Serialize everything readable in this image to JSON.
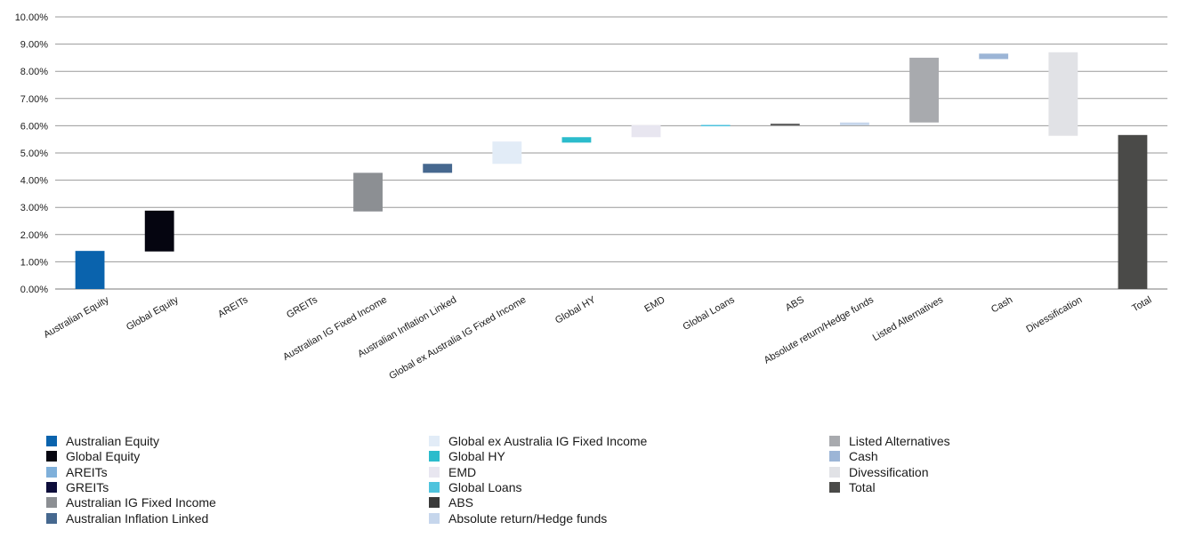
{
  "chart_data": {
    "type": "bar",
    "subtype": "waterfall",
    "title": "",
    "xlabel": "",
    "ylabel": "",
    "ylim": [
      0,
      10
    ],
    "y_tick_format": "percent_2dp",
    "y_ticks": [
      "0.00%",
      "1.00%",
      "2.00%",
      "3.00%",
      "4.00%",
      "5.00%",
      "6.00%",
      "7.00%",
      "8.00%",
      "9.00%",
      "10.00%"
    ],
    "grid": true,
    "legend_position": "bottom",
    "categories": [
      "Australian Equity",
      "Global Equity",
      "AREITs",
      "GREITs",
      "Australian IG Fixed Income",
      "Australian Inflation Linked",
      "Global ex Australia IG Fixed Income",
      "Global HY",
      "EMD",
      "Global Loans",
      "ABS",
      "Absolute return/Hedge funds",
      "Listed Alternatives",
      "Cash",
      "Divessification",
      "Total"
    ],
    "bars": [
      {
        "name": "Australian Equity",
        "base": 0.0,
        "top": 1.4,
        "color": "#0a63ad"
      },
      {
        "name": "Global Equity",
        "base": 1.38,
        "top": 2.88,
        "color": "#050510"
      },
      {
        "name": "AREITs",
        "base": 2.88,
        "top": 2.88,
        "color": "#7fb0da"
      },
      {
        "name": "GREITs",
        "base": 2.88,
        "top": 2.88,
        "color": "#0d0d3a"
      },
      {
        "name": "Australian IG Fixed Income",
        "base": 2.85,
        "top": 4.27,
        "color": "#8c8f93"
      },
      {
        "name": "Australian Inflation Linked",
        "base": 4.27,
        "top": 4.6,
        "color": "#46688f"
      },
      {
        "name": "Global ex Australia IG Fixed Income",
        "base": 4.6,
        "top": 5.42,
        "color": "#e2ecf7"
      },
      {
        "name": "Global HY",
        "base": 5.38,
        "top": 5.58,
        "color": "#2bbccc"
      },
      {
        "name": "EMD",
        "base": 5.58,
        "top": 6.02,
        "color": "#e8e6f0"
      },
      {
        "name": "Global Loans",
        "base": 5.98,
        "top": 6.03,
        "color": "#4fc3dd"
      },
      {
        "name": "ABS",
        "base": 6.02,
        "top": 6.07,
        "color": "#3a3a3a"
      },
      {
        "name": "Absolute return/Hedge funds",
        "base": 6.02,
        "top": 6.12,
        "color": "#c6d6ec"
      },
      {
        "name": "Listed Alternatives",
        "base": 6.12,
        "top": 8.5,
        "color": "#a8aaae"
      },
      {
        "name": "Cash",
        "base": 8.45,
        "top": 8.65,
        "color": "#9cb5d6"
      },
      {
        "name": "Divessification",
        "base": 5.63,
        "top": 8.7,
        "color": "#e1e2e6"
      },
      {
        "name": "Total",
        "base": 0.0,
        "top": 5.66,
        "color": "#4a4a48"
      }
    ],
    "legend": [
      {
        "label": "Australian Equity",
        "color": "#0a63ad"
      },
      {
        "label": "Global Equity",
        "color": "#050510"
      },
      {
        "label": "AREITs",
        "color": "#7fb0da"
      },
      {
        "label": "GREITs",
        "color": "#0d0d3a"
      },
      {
        "label": "Australian IG Fixed Income",
        "color": "#8c8f93"
      },
      {
        "label": "Australian Inflation Linked",
        "color": "#46688f"
      },
      {
        "label": "Global ex Australia IG Fixed Income",
        "color": "#e2ecf7"
      },
      {
        "label": "Global HY",
        "color": "#2bbccc"
      },
      {
        "label": "EMD",
        "color": "#e8e6f0"
      },
      {
        "label": "Global Loans",
        "color": "#4fc3dd"
      },
      {
        "label": "ABS",
        "color": "#3a3a3a"
      },
      {
        "label": "Absolute return/Hedge funds",
        "color": "#c6d6ec"
      },
      {
        "label": "Listed Alternatives",
        "color": "#a8aaae"
      },
      {
        "label": "Cash",
        "color": "#9cb5d6"
      },
      {
        "label": "Divessification",
        "color": "#e1e2e6"
      },
      {
        "label": "Total",
        "color": "#4a4a48"
      }
    ]
  }
}
